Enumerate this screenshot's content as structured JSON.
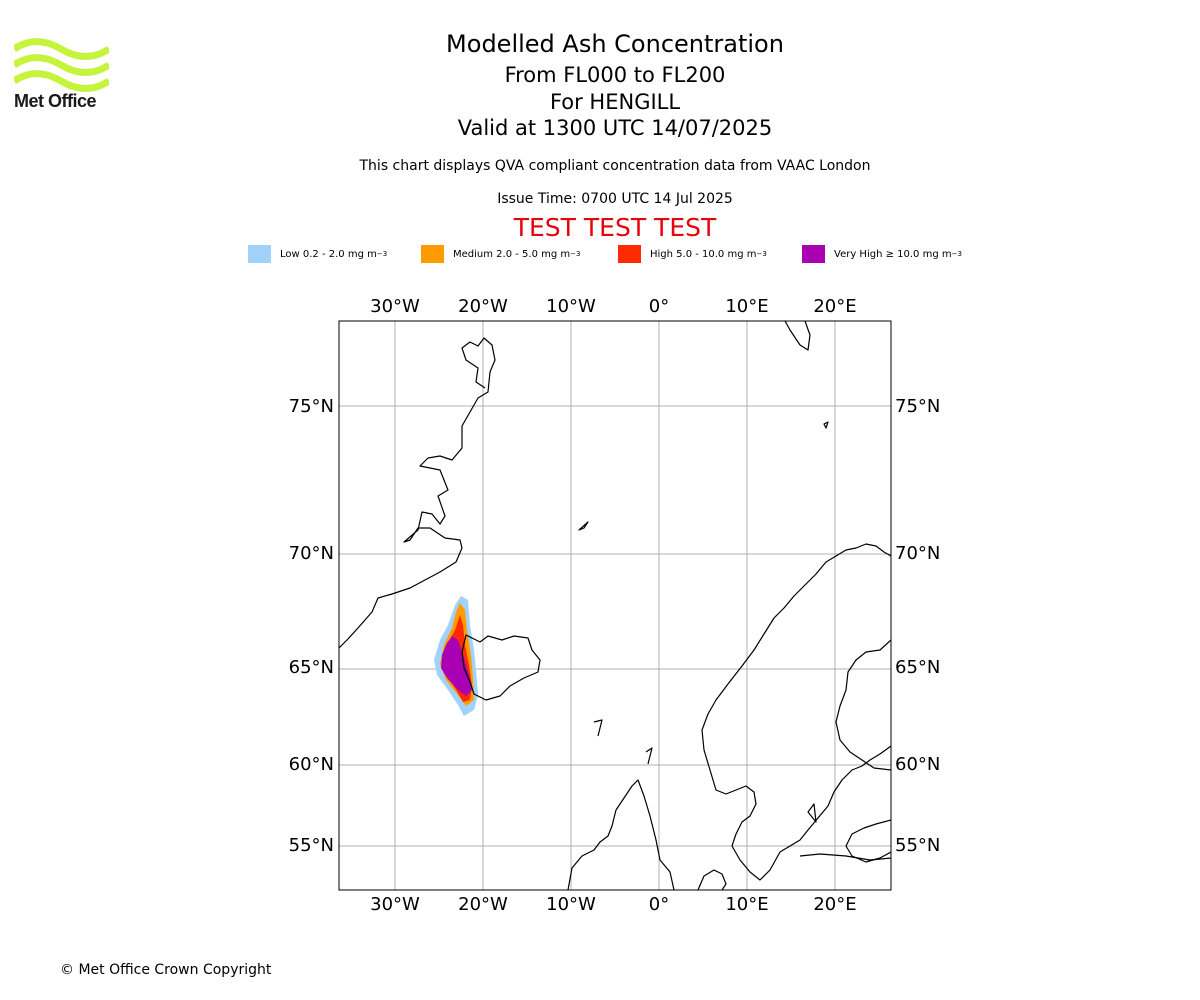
{
  "brand": {
    "name": "Met Office",
    "logo_color": "#c6f33b"
  },
  "header": {
    "title": "Modelled Ash Concentration",
    "levels": "From FL000 to FL200",
    "volcano": "For HENGILL",
    "valid": "Valid at 1300 UTC 14/07/2025",
    "note": "This chart displays QVA compliant concentration data from VAAC London",
    "issue": "Issue Time: 0700 UTC 14 Jul 2025",
    "test_banner": "TEST TEST TEST"
  },
  "legend": [
    {
      "label": "Low 0.2 - 2.0 mg m",
      "color": "#a0d2fa"
    },
    {
      "label": "Medium 2.0 - 5.0 mg m",
      "color": "#ff9a00"
    },
    {
      "label": "High 5.0 - 10.0 mg m",
      "color": "#ff2a00"
    },
    {
      "label": "Very High ≥ 10.0 mg m",
      "color": "#aa00b4"
    }
  ],
  "legend_unit_exp": "−3",
  "map": {
    "lon_labels": [
      "30°W",
      "20°W",
      "10°W",
      "0°",
      "10°E",
      "20°E"
    ],
    "lat_labels": [
      "75°N",
      "70°N",
      "65°N",
      "60°N",
      "55°N"
    ],
    "lon_range": [
      "36°W",
      "26°E"
    ],
    "lat_range": [
      "53°N",
      "78°N"
    ],
    "grid": true
  },
  "footer": {
    "copyright": "© Met Office Crown Copyright"
  }
}
